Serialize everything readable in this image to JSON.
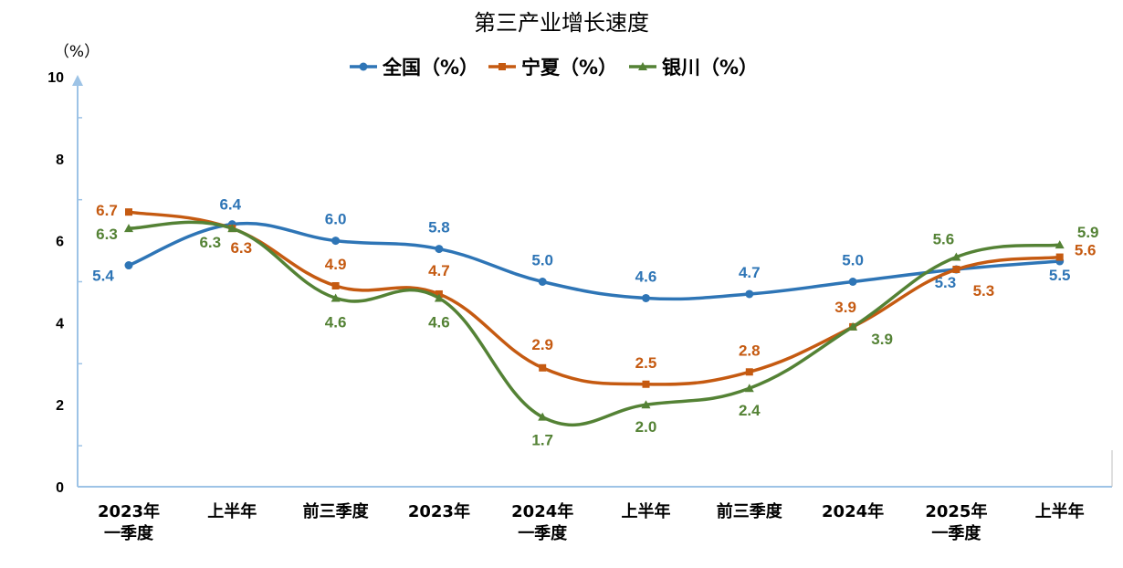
{
  "chart_data": {
    "type": "line",
    "title": "第三产业增长速度",
    "y_unit": "（%）",
    "ylim": [
      0,
      10
    ],
    "yticks": [
      0,
      2,
      4,
      6,
      8,
      10
    ],
    "grid": false,
    "legend_position": "top",
    "categories": [
      [
        "2023年",
        "一季度"
      ],
      [
        "上半年"
      ],
      [
        "前三季度"
      ],
      [
        "2023年"
      ],
      [
        "2024年",
        "一季度"
      ],
      [
        "上半年"
      ],
      [
        "前三季度"
      ],
      [
        "2024年"
      ],
      [
        "2025年",
        "一季度"
      ],
      [
        "上半年"
      ]
    ],
    "series": [
      {
        "name": "全国（%）",
        "color": "#2e75b6",
        "marker": "circle",
        "values": [
          5.4,
          6.4,
          6.0,
          5.8,
          5.0,
          4.6,
          4.7,
          5.0,
          5.3,
          5.5
        ],
        "labels": [
          "5.4",
          "6.4",
          "6.0",
          "5.8",
          "5.0",
          "4.6",
          "4.7",
          "5.0",
          "5.3",
          "5.5"
        ]
      },
      {
        "name": "宁夏（%）",
        "color": "#c55a11",
        "marker": "square",
        "values": [
          6.7,
          6.3,
          4.9,
          4.7,
          2.9,
          2.5,
          2.8,
          3.9,
          5.3,
          5.6
        ],
        "labels": [
          "6.7",
          "6.3",
          "4.9",
          "4.7",
          "2.9",
          "2.5",
          "2.8",
          "3.9",
          "5.3",
          "5.6"
        ]
      },
      {
        "name": "银川（%）",
        "color": "#548235",
        "marker": "triangle",
        "values": [
          6.3,
          6.3,
          4.6,
          4.6,
          1.7,
          2.0,
          2.4,
          3.9,
          5.6,
          5.9
        ],
        "labels": [
          "6.3",
          "6.3",
          "4.6",
          "4.6",
          "1.7",
          "2.0",
          "2.4",
          "3.9",
          "5.6",
          "5.9"
        ]
      }
    ]
  },
  "colors": {
    "axis": "#9dc3e6"
  }
}
